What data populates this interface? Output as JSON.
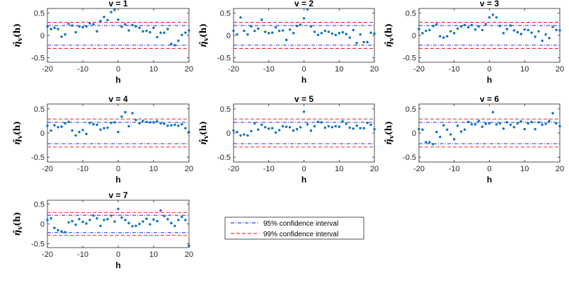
{
  "colors": {
    "points": "#0072BD",
    "ci95": "#0000FF",
    "ci99": "#FF0000",
    "axes": "#262626"
  },
  "legend": {
    "ci95_label": "95% confidence interval",
    "ci99_label": "99% confidence interval"
  },
  "chart_data": [
    {
      "type": "scatter",
      "title": "v = 1",
      "xlabel": "h",
      "ylabel": "η̂_v(h)",
      "xlim": [
        -20,
        20
      ],
      "ylim": [
        -0.6,
        0.6
      ],
      "xticks": [
        -20,
        -10,
        0,
        10,
        20
      ],
      "yticks": [
        -0.5,
        0,
        0.5
      ],
      "ci95": 0.22,
      "ci99": 0.29,
      "x": [
        -20,
        -19,
        -18,
        -17,
        -16,
        -15,
        -14,
        -13,
        -12,
        -11,
        -10,
        -9,
        -8,
        -7,
        -6,
        -5,
        -4,
        -3,
        -2,
        -1,
        0,
        1,
        2,
        3,
        4,
        5,
        6,
        7,
        8,
        9,
        10,
        11,
        12,
        13,
        14,
        15,
        16,
        17,
        18,
        19,
        20
      ],
      "y": [
        0.2,
        0.14,
        0.17,
        0.14,
        -0.03,
        0.02,
        0.26,
        0.22,
        0.07,
        0.2,
        0.18,
        0.2,
        0.27,
        0.25,
        0.09,
        0.32,
        0.41,
        0.34,
        0.52,
        0.57,
        0.35,
        0.19,
        0.25,
        0.11,
        0.23,
        0.2,
        0.17,
        0.09,
        0.1,
        0.07,
        0.17,
        -0.04,
        0.06,
        0.06,
        0.14,
        -0.19,
        -0.22,
        -0.12,
        0.01,
        0.06,
        0.11
      ]
    },
    {
      "type": "scatter",
      "title": "v = 2",
      "xlabel": "h",
      "ylabel": "η̂_v(h)",
      "xlim": [
        -20,
        20
      ],
      "ylim": [
        -0.6,
        0.6
      ],
      "xticks": [
        -20,
        -10,
        0,
        10,
        20
      ],
      "yticks": [
        -0.5,
        0,
        0.5
      ],
      "ci95": 0.22,
      "ci99": 0.29,
      "x": [
        -20,
        -19,
        -18,
        -17,
        -16,
        -15,
        -14,
        -13,
        -12,
        -11,
        -10,
        -9,
        -8,
        -7,
        -6,
        -5,
        -4,
        -3,
        -2,
        -1,
        0,
        1,
        2,
        3,
        4,
        5,
        6,
        7,
        8,
        9,
        10,
        11,
        12,
        13,
        14,
        15,
        16,
        17,
        18,
        19,
        20
      ],
      "y": [
        0.1,
        0.02,
        0.4,
        0.1,
        0.02,
        0.2,
        0.1,
        0.15,
        0.35,
        0.08,
        0.05,
        0.06,
        0.18,
        0.1,
        0.11,
        -0.1,
        0.13,
        0.05,
        0.21,
        0.24,
        0.38,
        0.58,
        0.2,
        0.08,
        0.01,
        0.05,
        0.1,
        0.08,
        0.04,
        0.01,
        0.05,
        0.07,
        0.03,
        -0.05,
        0.12,
        -0.17,
        0.02,
        -0.15,
        -0.15,
        0.06,
        0.04
      ]
    },
    {
      "type": "scatter",
      "title": "v = 3",
      "xlabel": "h",
      "ylabel": "η̂_v(h)",
      "xlim": [
        -20,
        20
      ],
      "ylim": [
        -0.6,
        0.6
      ],
      "xticks": [
        -20,
        -10,
        0,
        10,
        20
      ],
      "yticks": [
        -0.5,
        0,
        0.5
      ],
      "ci95": 0.22,
      "ci99": 0.29,
      "x": [
        -20,
        -19,
        -18,
        -17,
        -16,
        -15,
        -14,
        -13,
        -12,
        -11,
        -10,
        -9,
        -8,
        -7,
        -6,
        -5,
        -4,
        -3,
        -2,
        -1,
        0,
        1,
        2,
        3,
        4,
        5,
        6,
        7,
        8,
        9,
        10,
        11,
        12,
        13,
        14,
        15,
        16,
        17,
        18,
        19,
        20
      ],
      "y": [
        0.14,
        0.05,
        0.1,
        0.12,
        0.21,
        0.25,
        -0.02,
        -0.05,
        -0.02,
        0.09,
        0.05,
        0.15,
        0.2,
        0.23,
        0.18,
        0.23,
        0.13,
        0.2,
        0.12,
        0.25,
        0.4,
        0.46,
        0.4,
        0.21,
        0.05,
        0.14,
        0.22,
        0.11,
        0.07,
        0.03,
        0.13,
        0.12,
        0.06,
        -0.03,
        0.09,
        -0.12,
        0.02,
        -0.06,
        0.19,
        0.12,
        0.11
      ]
    },
    {
      "type": "scatter",
      "title": "v = 4",
      "xlabel": "h",
      "ylabel": "η̂_v(h)",
      "xlim": [
        -20,
        20
      ],
      "ylim": [
        -0.6,
        0.6
      ],
      "xticks": [
        -20,
        -10,
        0,
        10,
        20
      ],
      "yticks": [
        -0.5,
        0,
        0.5
      ],
      "ci95": 0.22,
      "ci99": 0.29,
      "x": [
        -20,
        -19,
        -18,
        -17,
        -16,
        -15,
        -14,
        -13,
        -12,
        -11,
        -10,
        -9,
        -8,
        -7,
        -6,
        -5,
        -4,
        -3,
        -2,
        -1,
        0,
        1,
        2,
        3,
        4,
        5,
        6,
        7,
        8,
        9,
        10,
        11,
        12,
        13,
        14,
        15,
        16,
        17,
        18,
        19,
        20
      ],
      "y": [
        0.15,
        0.05,
        0.16,
        0.12,
        0.13,
        0.2,
        0.23,
        0.05,
        -0.05,
        0.02,
        0.06,
        -0.02,
        0.21,
        0.18,
        0.17,
        0.07,
        0.1,
        0.11,
        0.21,
        0.22,
        0.02,
        0.34,
        0.43,
        0.14,
        0.41,
        0.27,
        0.2,
        0.25,
        0.23,
        0.22,
        0.22,
        0.24,
        0.2,
        0.19,
        0.15,
        0.16,
        0.17,
        0.15,
        0.18,
        0.1,
        0.02
      ]
    },
    {
      "type": "scatter",
      "title": "v = 5",
      "xlabel": "h",
      "ylabel": "η̂_v(h)",
      "xlim": [
        -20,
        20
      ],
      "ylim": [
        -0.6,
        0.6
      ],
      "xticks": [
        -20,
        -10,
        0,
        10,
        20
      ],
      "yticks": [
        -0.5,
        0,
        0.5
      ],
      "ci95": 0.22,
      "ci99": 0.29,
      "x": [
        -20,
        -19,
        -18,
        -17,
        -16,
        -15,
        -14,
        -13,
        -12,
        -11,
        -10,
        -9,
        -8,
        -7,
        -6,
        -5,
        -4,
        -3,
        -2,
        -1,
        0,
        1,
        2,
        3,
        4,
        5,
        6,
        7,
        8,
        9,
        10,
        11,
        12,
        13,
        14,
        15,
        16,
        17,
        18,
        19,
        20
      ],
      "y": [
        0.05,
        0.02,
        -0.05,
        -0.03,
        -0.05,
        0.04,
        0.2,
        0.07,
        0.17,
        0.12,
        0.09,
        0.1,
        0.01,
        0.06,
        0.14,
        0.13,
        0.12,
        0.05,
        0.08,
        0.12,
        0.44,
        0.18,
        0.05,
        0.14,
        0.23,
        0.22,
        0.11,
        0.14,
        0.12,
        0.14,
        0.13,
        0.24,
        0.19,
        0.11,
        0.09,
        0.15,
        0.1,
        0.1,
        0.21,
        0.17,
        0.08
      ]
    },
    {
      "type": "scatter",
      "title": "v = 6",
      "xlabel": "h",
      "ylabel": "η̂_v(h)",
      "xlim": [
        -20,
        20
      ],
      "ylim": [
        -0.6,
        0.6
      ],
      "xticks": [
        -20,
        -10,
        0,
        10,
        20
      ],
      "yticks": [
        -0.5,
        0,
        0.5
      ],
      "ci95": 0.22,
      "ci99": 0.29,
      "x": [
        -20,
        -19,
        -18,
        -17,
        -16,
        -15,
        -14,
        -13,
        -12,
        -11,
        -10,
        -9,
        -8,
        -7,
        -6,
        -5,
        -4,
        -3,
        -2,
        -1,
        0,
        1,
        2,
        3,
        4,
        5,
        6,
        7,
        8,
        9,
        10,
        11,
        12,
        13,
        14,
        15,
        16,
        17,
        18,
        19,
        20
      ],
      "y": [
        0.08,
        0.07,
        -0.19,
        -0.19,
        -0.23,
        0.02,
        -0.08,
        0.16,
        0.07,
        -0.03,
        -0.13,
        0.15,
        0.03,
        0.07,
        0.23,
        0.18,
        0.18,
        0.25,
        0.13,
        0.19,
        0.2,
        0.43,
        0.18,
        0.2,
        0.09,
        0.22,
        0.17,
        0.12,
        0.2,
        0.24,
        0.08,
        0.2,
        0.23,
        0.08,
        0.22,
        0.17,
        0.19,
        0.25,
        0.41,
        0.2,
        0.14
      ]
    },
    {
      "type": "scatter",
      "title": "v = 7",
      "xlabel": "h",
      "ylabel": "η̂_v(h)",
      "xlim": [
        -20,
        20
      ],
      "ylim": [
        -0.6,
        0.6
      ],
      "xticks": [
        -20,
        -10,
        0,
        10,
        20
      ],
      "yticks": [
        -0.5,
        0,
        0.5
      ],
      "ci95": 0.22,
      "ci99": 0.29,
      "x": [
        -20,
        -19,
        -18,
        -17,
        -16,
        -15,
        -14,
        -13,
        -12,
        -11,
        -10,
        -9,
        -8,
        -7,
        -6,
        -5,
        -4,
        -3,
        -2,
        -1,
        0,
        1,
        2,
        3,
        4,
        5,
        6,
        7,
        8,
        9,
        10,
        11,
        12,
        13,
        14,
        15,
        16,
        17,
        18,
        19,
        20
      ],
      "y": [
        0.1,
        0.14,
        -0.1,
        -0.16,
        -0.19,
        -0.21,
        0.04,
        0.07,
        -0.02,
        0.12,
        0.05,
        0.01,
        0.1,
        0.21,
        0.14,
        -0.05,
        0.1,
        0.12,
        0.21,
        0.06,
        0.38,
        0.16,
        0.1,
        0.02,
        -0.06,
        -0.05,
        0.0,
        0.06,
        0.13,
        -0.01,
        0.11,
        0.07,
        0.34,
        0.2,
        0.12,
        0.02,
        -0.05,
        0.1,
        0.18,
        0.1,
        -0.55
      ]
    }
  ]
}
